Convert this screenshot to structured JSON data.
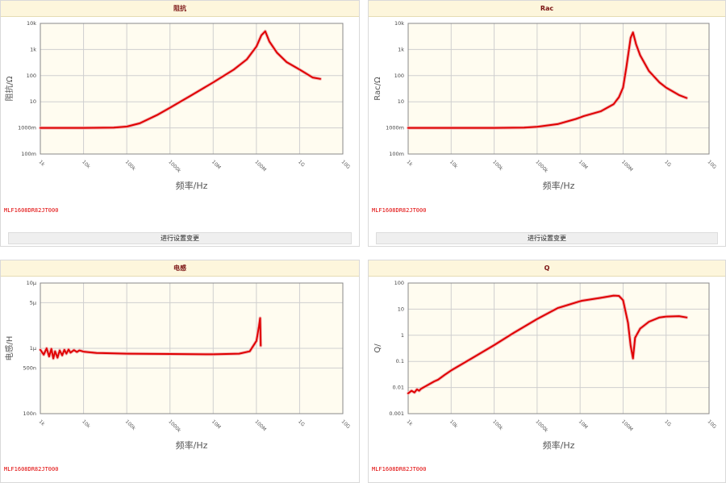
{
  "panels": [
    {
      "title": "阻抗",
      "part_number": "MLF1608DR82JT000",
      "button_label": "进行设置变更",
      "chart_data": {
        "type": "line",
        "title": "阻抗",
        "xlabel": "频率/Hz",
        "ylabel": "阻抗/Ω",
        "x_scale": "log",
        "y_scale": "log",
        "xlim": [
          1000,
          10000000000
        ],
        "ylim": [
          0.1,
          10000
        ],
        "x_ticks": [
          {
            "v": 1000,
            "label": "1k"
          },
          {
            "v": 10000,
            "label": "10k"
          },
          {
            "v": 100000,
            "label": "100k"
          },
          {
            "v": 1000000,
            "label": "1000k"
          },
          {
            "v": 10000000,
            "label": "10M"
          },
          {
            "v": 100000000,
            "label": "100M"
          },
          {
            "v": 1000000000,
            "label": "1G"
          },
          {
            "v": 10000000000,
            "label": "10G"
          }
        ],
        "y_ticks": [
          {
            "v": 0.1,
            "label": "100m"
          },
          {
            "v": 1,
            "label": "1000m"
          },
          {
            "v": 10,
            "label": "10"
          },
          {
            "v": 100,
            "label": "100"
          },
          {
            "v": 1000,
            "label": "1k"
          },
          {
            "v": 10000,
            "label": "10k"
          }
        ],
        "grid": true,
        "series": [
          {
            "color": "#e00000",
            "points": [
              [
                1000,
                1.0
              ],
              [
                10000,
                1.0
              ],
              [
                50000,
                1.03
              ],
              [
                100000,
                1.12
              ],
              [
                200000,
                1.5
              ],
              [
                500000,
                3.1
              ],
              [
                1000000,
                5.9
              ],
              [
                3000000,
                17
              ],
              [
                10000000,
                55
              ],
              [
                30000000,
                170
              ],
              [
                60000000,
                420
              ],
              [
                100000000,
                1300
              ],
              [
                130000000,
                3500
              ],
              [
                160000000,
                5000
              ],
              [
                200000000,
                2000
              ],
              [
                300000000,
                750
              ],
              [
                500000000,
                330
              ],
              [
                1000000000,
                170
              ],
              [
                2000000000,
                85
              ],
              [
                3000000000,
                75
              ]
            ]
          }
        ]
      }
    },
    {
      "title": "Rac",
      "part_number": "MLF1608DR82JT000",
      "button_label": "进行设置变更",
      "chart_data": {
        "type": "line",
        "title": "Rac",
        "xlabel": "频率/Hz",
        "ylabel": "Rac/Ω",
        "x_scale": "log",
        "y_scale": "log",
        "xlim": [
          1000,
          10000000000
        ],
        "ylim": [
          0.1,
          10000
        ],
        "x_ticks": [
          {
            "v": 1000,
            "label": "1k"
          },
          {
            "v": 10000,
            "label": "10k"
          },
          {
            "v": 100000,
            "label": "100k"
          },
          {
            "v": 1000000,
            "label": "1000k"
          },
          {
            "v": 10000000,
            "label": "10M"
          },
          {
            "v": 100000000,
            "label": "100M"
          },
          {
            "v": 1000000000,
            "label": "1G"
          },
          {
            "v": 10000000000,
            "label": "10G"
          }
        ],
        "y_ticks": [
          {
            "v": 0.1,
            "label": "100m"
          },
          {
            "v": 1,
            "label": "1000m"
          },
          {
            "v": 10,
            "label": "10"
          },
          {
            "v": 100,
            "label": "100"
          },
          {
            "v": 1000,
            "label": "1k"
          },
          {
            "v": 10000,
            "label": "10k"
          }
        ],
        "grid": true,
        "series": [
          {
            "color": "#e00000",
            "points": [
              [
                1000,
                1.0
              ],
              [
                100000,
                1.0
              ],
              [
                500000,
                1.03
              ],
              [
                1000000,
                1.1
              ],
              [
                3000000,
                1.4
              ],
              [
                8000000,
                2.2
              ],
              [
                10000000,
                2.5
              ],
              [
                12000000,
                2.8
              ],
              [
                30000000,
                4.3
              ],
              [
                60000000,
                8
              ],
              [
                80000000,
                15
              ],
              [
                100000000,
                35
              ],
              [
                120000000,
                220
              ],
              [
                150000000,
                2800
              ],
              [
                170000000,
                4500
              ],
              [
                200000000,
                1600
              ],
              [
                250000000,
                600
              ],
              [
                400000000,
                150
              ],
              [
                700000000,
                55
              ],
              [
                1000000000,
                35
              ],
              [
                2000000000,
                18
              ],
              [
                3000000000,
                14
              ]
            ]
          }
        ]
      }
    },
    {
      "title": "电感",
      "part_number": "MLF1608DR82JT000",
      "chart_data": {
        "type": "line",
        "title": "电感",
        "xlabel": "频率/Hz",
        "ylabel": "电感/H",
        "x_scale": "log",
        "y_scale": "log",
        "xlim": [
          1000,
          10000000000
        ],
        "ylim": [
          1e-07,
          1e-05
        ],
        "x_ticks": [
          {
            "v": 1000,
            "label": "1k"
          },
          {
            "v": 10000,
            "label": "10k"
          },
          {
            "v": 100000,
            "label": "100k"
          },
          {
            "v": 1000000,
            "label": "1000k"
          },
          {
            "v": 10000000,
            "label": "10M"
          },
          {
            "v": 100000000,
            "label": "100M"
          },
          {
            "v": 1000000000,
            "label": "1G"
          },
          {
            "v": 10000000000,
            "label": "10G"
          }
        ],
        "y_ticks": [
          {
            "v": 1e-07,
            "label": "100n"
          },
          {
            "v": 5e-07,
            "label": "500n"
          },
          {
            "v": 1e-06,
            "label": "1μ"
          },
          {
            "v": 5e-06,
            "label": "5μ"
          },
          {
            "v": 1e-05,
            "label": "10μ"
          }
        ],
        "grid": true,
        "series": [
          {
            "color": "#e00000",
            "points": [
              [
                1000,
                9.5e-07
              ],
              [
                1200,
                8e-07
              ],
              [
                1400,
                1e-06
              ],
              [
                1600,
                7.5e-07
              ],
              [
                1800,
                9.8e-07
              ],
              [
                2000,
                7e-07
              ],
              [
                2200,
                9e-07
              ],
              [
                2500,
                7.2e-07
              ],
              [
                2800,
                9.3e-07
              ],
              [
                3200,
                7.8e-07
              ],
              [
                3600,
                9.5e-07
              ],
              [
                4000,
                8.3e-07
              ],
              [
                4500,
                9.6e-07
              ],
              [
                5000,
                8.6e-07
              ],
              [
                6000,
                9.4e-07
              ],
              [
                7000,
                8.8e-07
              ],
              [
                8000,
                9.3e-07
              ],
              [
                10000,
                8.9e-07
              ],
              [
                20000,
                8.5e-07
              ],
              [
                100000,
                8.3e-07
              ],
              [
                1000000,
                8.2e-07
              ],
              [
                10000000,
                8.1e-07
              ],
              [
                40000000,
                8.3e-07
              ],
              [
                70000000,
                9e-07
              ],
              [
                100000000,
                1.3e-06
              ],
              [
                115000000,
                2.2e-06
              ],
              [
                122000000,
                2.9e-06
              ],
              [
                126000000,
                1.1e-06
              ]
            ]
          }
        ]
      }
    },
    {
      "title": "Q",
      "part_number": "MLF1608DR82JT000",
      "chart_data": {
        "type": "line",
        "title": "Q",
        "xlabel": "频率/Hz",
        "ylabel": "Q/",
        "x_scale": "log",
        "y_scale": "log",
        "xlim": [
          1000,
          10000000000
        ],
        "ylim": [
          0.001,
          100
        ],
        "x_ticks": [
          {
            "v": 1000,
            "label": "1k"
          },
          {
            "v": 10000,
            "label": "10k"
          },
          {
            "v": 100000,
            "label": "100k"
          },
          {
            "v": 1000000,
            "label": "1000k"
          },
          {
            "v": 10000000,
            "label": "10M"
          },
          {
            "v": 100000000,
            "label": "100M"
          },
          {
            "v": 1000000000,
            "label": "1G"
          },
          {
            "v": 10000000000,
            "label": "10G"
          }
        ],
        "y_ticks": [
          {
            "v": 0.001,
            "label": "0.001"
          },
          {
            "v": 0.01,
            "label": "0.01"
          },
          {
            "v": 0.1,
            "label": "0.1"
          },
          {
            "v": 1,
            "label": "1"
          },
          {
            "v": 10,
            "label": "10"
          },
          {
            "v": 100,
            "label": "100"
          }
        ],
        "grid": true,
        "series": [
          {
            "color": "#e00000",
            "points": [
              [
                1000,
                0.006
              ],
              [
                1200,
                0.0075
              ],
              [
                1400,
                0.0065
              ],
              [
                1600,
                0.0085
              ],
              [
                1800,
                0.0075
              ],
              [
                2000,
                0.009
              ],
              [
                2500,
                0.011
              ],
              [
                3000,
                0.013
              ],
              [
                4000,
                0.017
              ],
              [
                5000,
                0.02
              ],
              [
                7000,
                0.03
              ],
              [
                10000,
                0.045
              ],
              [
                30000,
                0.13
              ],
              [
                100000,
                0.42
              ],
              [
                300000,
                1.3
              ],
              [
                1000000,
                4.2
              ],
              [
                3000000,
                11
              ],
              [
                10000000,
                20
              ],
              [
                11000000,
                21
              ],
              [
                30000000,
                27
              ],
              [
                60000000,
                33
              ],
              [
                80000000,
                32
              ],
              [
                100000000,
                22
              ],
              [
                130000000,
                3
              ],
              [
                150000000,
                0.4
              ],
              [
                170000000,
                0.13
              ],
              [
                190000000,
                0.8
              ],
              [
                250000000,
                1.8
              ],
              [
                400000000,
                3.3
              ],
              [
                700000000,
                4.8
              ],
              [
                1000000000,
                5.2
              ],
              [
                2000000000,
                5.4
              ],
              [
                3000000000,
                4.8
              ]
            ]
          }
        ]
      }
    }
  ]
}
